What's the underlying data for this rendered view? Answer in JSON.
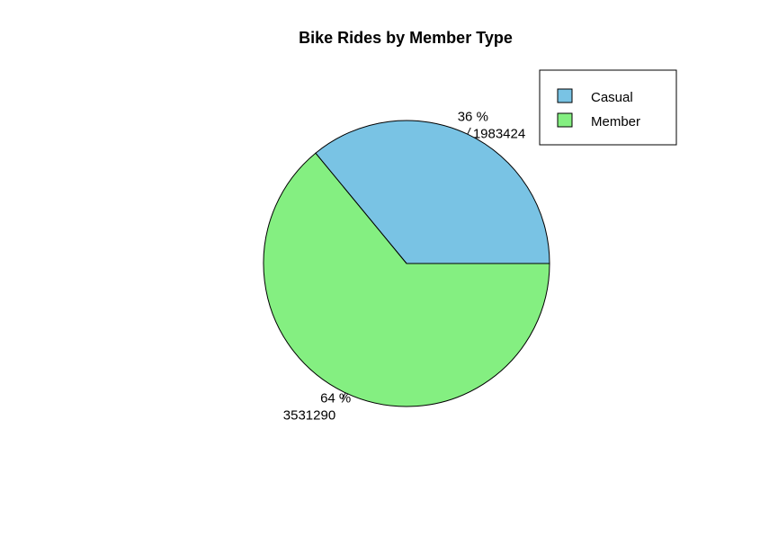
{
  "chart_data": {
    "type": "pie",
    "title": "Bike Rides by Member Type",
    "legend_position": "top-right",
    "start_angle_deg": 0,
    "direction": "counterclockwise",
    "slices": [
      {
        "name": "Casual",
        "value": 1983424,
        "percent_label": "36 %",
        "value_label": "1983424",
        "color": "#79C3E4"
      },
      {
        "name": "Member",
        "value": 3531290,
        "percent_label": "64 %",
        "value_label": "3531290",
        "color": "#84EF81"
      }
    ]
  }
}
